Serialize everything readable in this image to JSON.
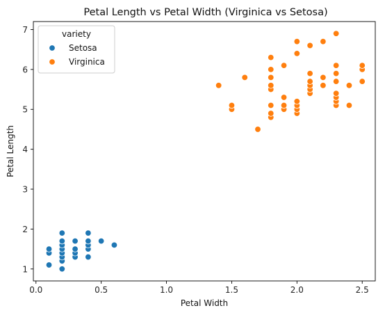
{
  "chart_data": {
    "type": "scatter",
    "title": "Petal Length vs Petal Width (Virginica vs Setosa)",
    "xlabel": "Petal Width",
    "ylabel": "Petal Length",
    "xlim": [
      -0.02,
      2.6
    ],
    "ylim": [
      0.7,
      7.2
    ],
    "xticks": [
      0.0,
      0.5,
      1.0,
      1.5,
      2.0,
      2.5
    ],
    "xtick_labels": [
      "0.0",
      "0.5",
      "1.0",
      "1.5",
      "2.0",
      "2.5"
    ],
    "yticks": [
      1,
      2,
      3,
      4,
      5,
      6,
      7
    ],
    "ytick_labels": [
      "1",
      "2",
      "3",
      "4",
      "5",
      "6",
      "7"
    ],
    "grid": false,
    "legend": {
      "title": "variety",
      "placement": "top-left"
    },
    "series": [
      {
        "name": "Setosa",
        "color": "#1f77b4",
        "points": [
          [
            0.1,
            1.1
          ],
          [
            0.1,
            1.4
          ],
          [
            0.1,
            1.5
          ],
          [
            0.2,
            1.0
          ],
          [
            0.2,
            1.2
          ],
          [
            0.2,
            1.3
          ],
          [
            0.2,
            1.4
          ],
          [
            0.2,
            1.5
          ],
          [
            0.2,
            1.6
          ],
          [
            0.2,
            1.7
          ],
          [
            0.2,
            1.9
          ],
          [
            0.3,
            1.3
          ],
          [
            0.3,
            1.4
          ],
          [
            0.3,
            1.5
          ],
          [
            0.3,
            1.7
          ],
          [
            0.4,
            1.3
          ],
          [
            0.4,
            1.5
          ],
          [
            0.4,
            1.6
          ],
          [
            0.4,
            1.7
          ],
          [
            0.4,
            1.9
          ],
          [
            0.5,
            1.7
          ],
          [
            0.6,
            1.6
          ]
        ]
      },
      {
        "name": "Virginica",
        "color": "#ff7f0e",
        "points": [
          [
            1.4,
            5.6
          ],
          [
            1.5,
            5.0
          ],
          [
            1.5,
            5.1
          ],
          [
            1.6,
            5.8
          ],
          [
            1.7,
            4.5
          ],
          [
            1.8,
            4.8
          ],
          [
            1.8,
            4.9
          ],
          [
            1.8,
            5.1
          ],
          [
            1.8,
            5.5
          ],
          [
            1.8,
            5.6
          ],
          [
            1.8,
            5.8
          ],
          [
            1.8,
            6.0
          ],
          [
            1.8,
            6.3
          ],
          [
            1.9,
            5.0
          ],
          [
            1.9,
            5.1
          ],
          [
            1.9,
            5.3
          ],
          [
            1.9,
            6.1
          ],
          [
            2.0,
            4.9
          ],
          [
            2.0,
            5.0
          ],
          [
            2.0,
            5.1
          ],
          [
            2.0,
            5.2
          ],
          [
            2.0,
            6.4
          ],
          [
            2.0,
            6.7
          ],
          [
            2.1,
            5.4
          ],
          [
            2.1,
            5.5
          ],
          [
            2.1,
            5.6
          ],
          [
            2.1,
            5.7
          ],
          [
            2.1,
            5.9
          ],
          [
            2.1,
            6.6
          ],
          [
            2.2,
            5.6
          ],
          [
            2.2,
            5.8
          ],
          [
            2.2,
            6.7
          ],
          [
            2.3,
            5.1
          ],
          [
            2.3,
            5.2
          ],
          [
            2.3,
            5.3
          ],
          [
            2.3,
            5.4
          ],
          [
            2.3,
            5.7
          ],
          [
            2.3,
            5.9
          ],
          [
            2.3,
            6.1
          ],
          [
            2.3,
            6.9
          ],
          [
            2.4,
            5.1
          ],
          [
            2.4,
            5.6
          ],
          [
            2.5,
            5.7
          ],
          [
            2.5,
            6.0
          ],
          [
            2.5,
            6.1
          ]
        ]
      }
    ]
  }
}
